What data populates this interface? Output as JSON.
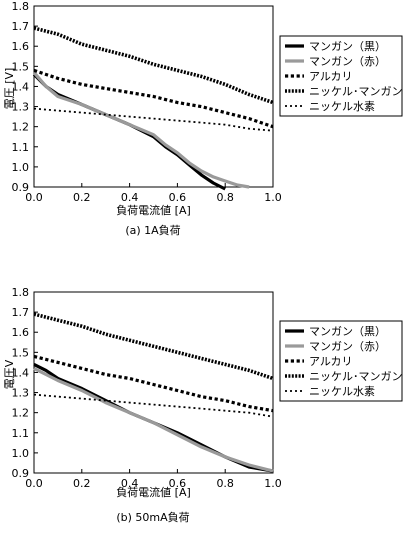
{
  "chart_data": [
    {
      "type": "line",
      "caption": "(a)  1A負荷",
      "xlabel": "負荷電流値 [A]",
      "ylabel": "電圧 [V]",
      "xlim": [
        0.0,
        1.0
      ],
      "ylim": [
        0.9,
        1.8
      ],
      "xticks": [
        "0.0",
        "0.2",
        "0.4",
        "0.6",
        "0.8",
        "1.0"
      ],
      "yticks": [
        "0.9",
        "1.0",
        "1.1",
        "1.2",
        "1.3",
        "1.4",
        "1.5",
        "1.6",
        "1.7",
        "1.8"
      ],
      "legend_position": "right",
      "series": [
        {
          "name": "マンガン（黒）",
          "style": "solid-black",
          "x": [
            0,
            0.05,
            0.1,
            0.2,
            0.3,
            0.4,
            0.5,
            0.55,
            0.6,
            0.65,
            0.7,
            0.75,
            0.8
          ],
          "y": [
            1.46,
            1.4,
            1.36,
            1.31,
            1.26,
            1.21,
            1.15,
            1.1,
            1.06,
            1.01,
            0.96,
            0.92,
            0.89
          ]
        },
        {
          "name": "マンガン（赤）",
          "style": "solid-gray",
          "x": [
            0,
            0.05,
            0.1,
            0.2,
            0.3,
            0.4,
            0.5,
            0.55,
            0.6,
            0.65,
            0.7,
            0.75,
            0.8,
            0.85,
            0.9
          ],
          "y": [
            1.47,
            1.4,
            1.35,
            1.31,
            1.26,
            1.21,
            1.16,
            1.11,
            1.07,
            1.02,
            0.98,
            0.95,
            0.93,
            0.91,
            0.9
          ]
        },
        {
          "name": "アルカリ",
          "style": "dotted-black-thick",
          "x": [
            0,
            0.1,
            0.2,
            0.3,
            0.4,
            0.5,
            0.6,
            0.7,
            0.8,
            0.9,
            1.0
          ],
          "y": [
            1.48,
            1.44,
            1.41,
            1.39,
            1.37,
            1.35,
            1.32,
            1.3,
            1.27,
            1.24,
            1.2
          ]
        },
        {
          "name": "ニッケル･マンガン",
          "style": "dotted-black-dense",
          "x": [
            0,
            0.1,
            0.2,
            0.3,
            0.4,
            0.5,
            0.6,
            0.7,
            0.8,
            0.9,
            1.0
          ],
          "y": [
            1.69,
            1.66,
            1.61,
            1.58,
            1.55,
            1.51,
            1.48,
            1.45,
            1.41,
            1.36,
            1.32
          ]
        },
        {
          "name": "ニッケル水素",
          "style": "dotted-black-sparse",
          "x": [
            0,
            0.1,
            0.2,
            0.3,
            0.4,
            0.5,
            0.6,
            0.7,
            0.8,
            0.9,
            1.0
          ],
          "y": [
            1.29,
            1.28,
            1.27,
            1.26,
            1.25,
            1.24,
            1.23,
            1.22,
            1.21,
            1.19,
            1.18
          ]
        }
      ]
    },
    {
      "type": "line",
      "caption": "(b)  50mA負荷",
      "xlabel": "負荷電流値 [A]",
      "ylabel": "電圧V",
      "xlim": [
        0.0,
        1.0
      ],
      "ylim": [
        0.9,
        1.8
      ],
      "xticks": [
        "0.0",
        "0.2",
        "0.4",
        "0.6",
        "0.8",
        "1.0"
      ],
      "yticks": [
        "0.9",
        "1.0",
        "1.1",
        "1.2",
        "1.3",
        "1.4",
        "1.5",
        "1.6",
        "1.7",
        "1.8"
      ],
      "legend_position": "right",
      "series": [
        {
          "name": "マンガン（黒）",
          "style": "solid-black",
          "x": [
            0,
            0.05,
            0.1,
            0.2,
            0.3,
            0.4,
            0.5,
            0.6,
            0.7,
            0.8,
            0.9,
            1.0
          ],
          "y": [
            1.44,
            1.41,
            1.37,
            1.32,
            1.26,
            1.2,
            1.15,
            1.1,
            1.04,
            0.98,
            0.93,
            0.91
          ]
        },
        {
          "name": "マンガン（赤）",
          "style": "solid-gray",
          "x": [
            0,
            0.05,
            0.1,
            0.2,
            0.3,
            0.4,
            0.5,
            0.6,
            0.7,
            0.8,
            0.9,
            1.0
          ],
          "y": [
            1.42,
            1.39,
            1.36,
            1.31,
            1.25,
            1.2,
            1.15,
            1.09,
            1.03,
            0.98,
            0.94,
            0.91
          ]
        },
        {
          "name": "アルカリ",
          "style": "dotted-black-thick",
          "x": [
            0,
            0.1,
            0.2,
            0.3,
            0.4,
            0.5,
            0.6,
            0.7,
            0.8,
            0.9,
            1.0
          ],
          "y": [
            1.48,
            1.45,
            1.42,
            1.39,
            1.37,
            1.34,
            1.31,
            1.28,
            1.26,
            1.23,
            1.21
          ]
        },
        {
          "name": "ニッケル･マンガン",
          "style": "dotted-black-dense",
          "x": [
            0,
            0.1,
            0.2,
            0.3,
            0.4,
            0.5,
            0.6,
            0.7,
            0.8,
            0.9,
            1.0
          ],
          "y": [
            1.69,
            1.66,
            1.63,
            1.59,
            1.56,
            1.53,
            1.5,
            1.47,
            1.44,
            1.41,
            1.37
          ]
        },
        {
          "name": "ニッケル水素",
          "style": "dotted-black-sparse",
          "x": [
            0,
            0.1,
            0.2,
            0.3,
            0.4,
            0.5,
            0.6,
            0.7,
            0.8,
            0.9,
            1.0
          ],
          "y": [
            1.29,
            1.28,
            1.27,
            1.26,
            1.25,
            1.24,
            1.23,
            1.22,
            1.21,
            1.2,
            1.18
          ]
        }
      ]
    }
  ]
}
